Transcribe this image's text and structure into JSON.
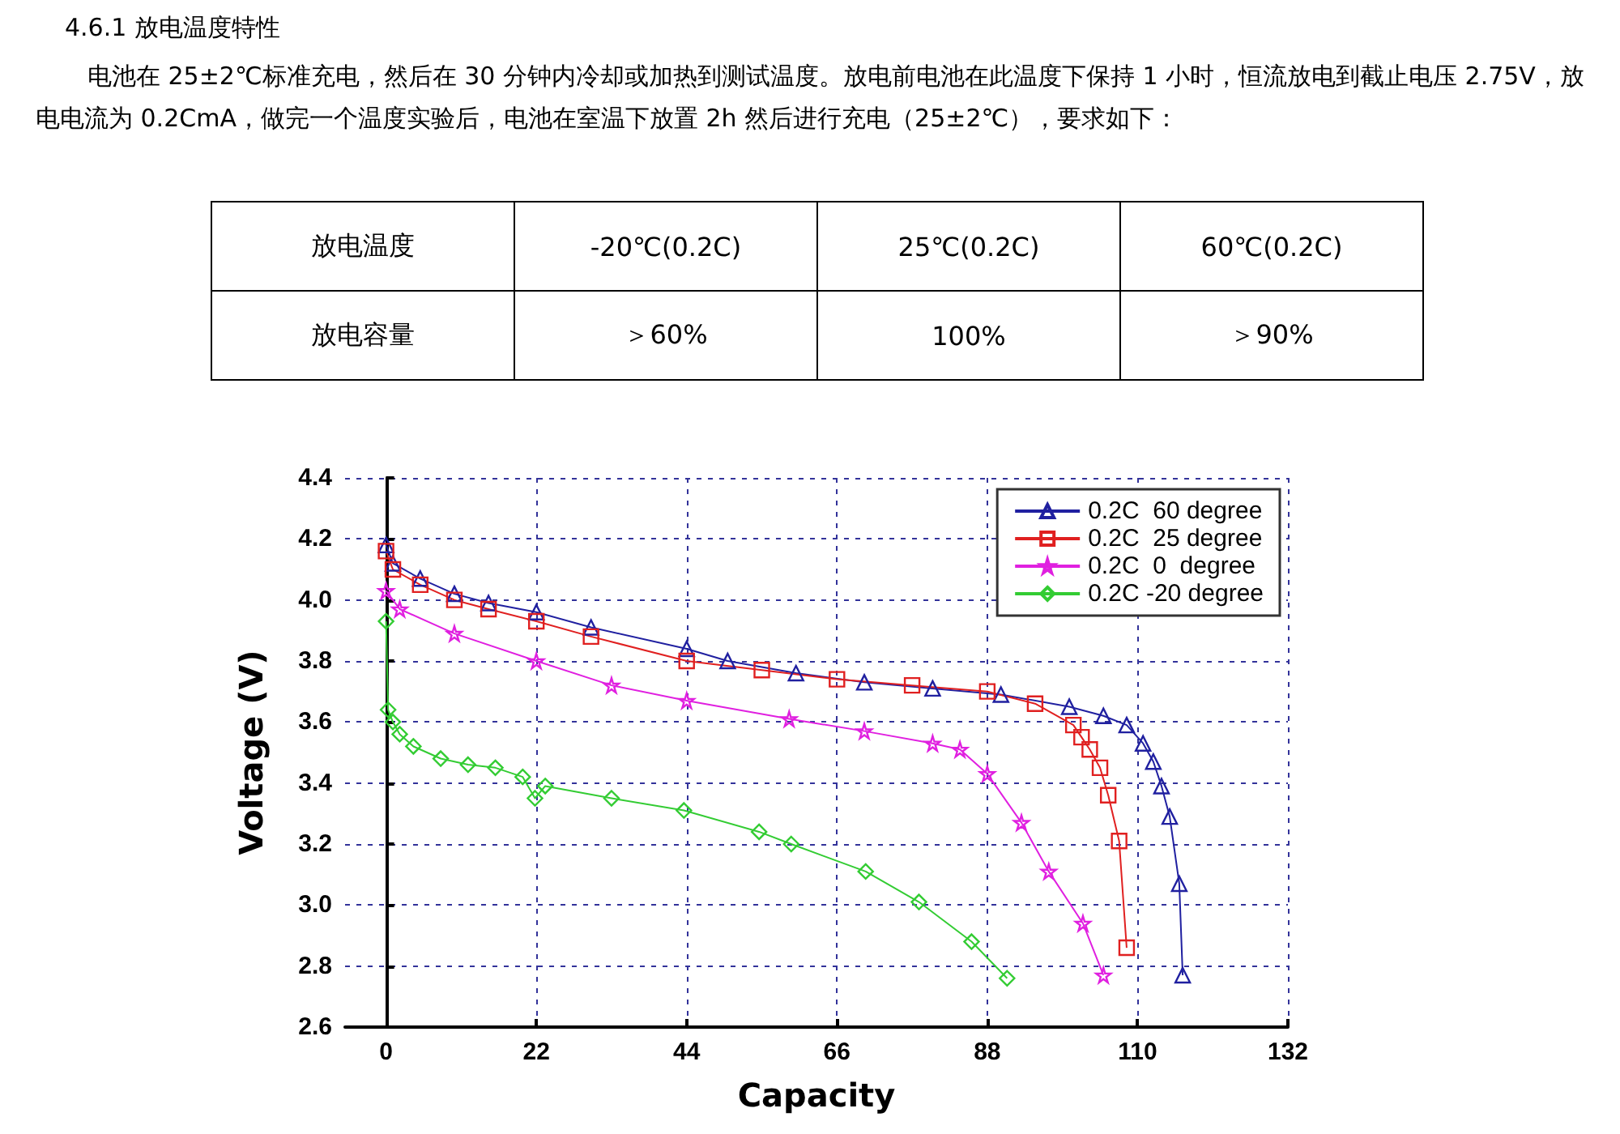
{
  "chart_data": [
    {
      "type": "other",
      "title": "4.6.1  放电温度特性",
      "annotations": [
        "电池在 25±2℃标准充电，然后在 30 分钟内冷却或加热到测试温度。放电前电池在此温度下保持 1 小时，恒流放电到截止电压 2.75V，放电电流为 0.2CmA，做完一个温度实验后，电池在室温下放置 2h 然后进行充电（25±2℃），要求如下：",
        "放电温度",
        "-20℃(0.2C)",
        "25℃(0.2C)",
        "60℃(0.2C)",
        "放电容量",
        "＞60%",
        "100%",
        "＞90%"
      ]
    },
    {
      "type": "line",
      "xlabel": "Capacity",
      "ylabel": "Voltage (V)",
      "xlim": [
        -6,
        132
      ],
      "xticks": [
        0,
        22,
        44,
        66,
        88,
        110,
        132
      ],
      "ylim": [
        2.6,
        4.4
      ],
      "yticks": [
        {
          "value": 2.6,
          "label": "2.6"
        },
        {
          "value": 2.8,
          "label": "2.8"
        },
        {
          "value": 3.0,
          "label": "3.0"
        },
        {
          "value": 3.2,
          "label": "3.2"
        },
        {
          "value": 3.4,
          "label": "3.4"
        },
        {
          "value": 3.6,
          "label": "3.6"
        },
        {
          "value": 3.8,
          "label": "3.8"
        },
        {
          "value": 4.0,
          "label": "4.0"
        },
        {
          "value": 4.2,
          "label": "4.2"
        },
        {
          "value": 4.4,
          "label": "4.4"
        }
      ],
      "grid": true,
      "legend": "top right",
      "series": [
        {
          "name": "0.2C  60 degree",
          "color": "#2020a0",
          "marker": "triangle",
          "x": [
            0,
            1,
            5,
            10,
            15,
            22,
            30,
            44,
            50,
            60,
            70,
            80,
            90,
            100,
            105,
            108.4,
            110.8,
            112.3,
            113.5,
            114.7,
            116.1,
            116.6
          ],
          "values": [
            4.18,
            4.12,
            4.07,
            4.02,
            3.99,
            3.96,
            3.91,
            3.84,
            3.8,
            3.76,
            3.73,
            3.71,
            3.69,
            3.65,
            3.62,
            3.59,
            3.53,
            3.47,
            3.39,
            3.29,
            3.07,
            2.77
          ]
        },
        {
          "name": "0.2C  25 degree",
          "color": "#e02020",
          "marker": "square",
          "x": [
            0,
            1,
            5,
            10,
            15,
            22,
            30,
            44,
            55,
            66,
            77,
            88,
            95,
            100.6,
            101.8,
            103,
            104.5,
            105.7,
            107.3,
            108.4
          ],
          "values": [
            4.16,
            4.1,
            4.05,
            4.0,
            3.97,
            3.93,
            3.88,
            3.8,
            3.77,
            3.74,
            3.72,
            3.7,
            3.66,
            3.59,
            3.55,
            3.51,
            3.45,
            3.36,
            3.21,
            2.86
          ]
        },
        {
          "name": "0.2C  0  degree",
          "color": "#e020e0",
          "marker": "star",
          "x": [
            0,
            2,
            10,
            22,
            33,
            44,
            59,
            70,
            80,
            84,
            88,
            93,
            97,
            102,
            105
          ],
          "values": [
            4.03,
            3.97,
            3.89,
            3.8,
            3.72,
            3.67,
            3.61,
            3.57,
            3.53,
            3.51,
            3.43,
            3.27,
            3.11,
            2.94,
            2.77
          ]
        },
        {
          "name": "0.2C -20 degree",
          "color": "#33cc33",
          "marker": "diamond",
          "x": [
            0,
            0.3,
            1,
            2,
            4,
            8,
            12,
            16,
            20,
            21.8,
            23.3,
            33,
            43.6,
            54.6,
            59.3,
            70.2,
            78,
            85.7,
            90.9
          ],
          "values": [
            3.93,
            3.64,
            3.6,
            3.56,
            3.52,
            3.48,
            3.46,
            3.45,
            3.42,
            3.35,
            3.39,
            3.35,
            3.31,
            3.24,
            3.2,
            3.11,
            3.01,
            2.88,
            2.76
          ]
        }
      ]
    }
  ]
}
